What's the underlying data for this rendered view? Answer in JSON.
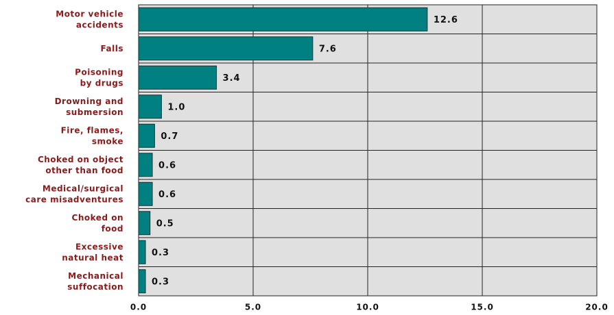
{
  "chart_data": {
    "type": "barh",
    "categories": [
      [
        "Motor vehicle",
        "accidents"
      ],
      [
        "Falls"
      ],
      [
        "Poisoning",
        "by drugs"
      ],
      [
        "Drowning and",
        "submersion"
      ],
      [
        "Fire, flames,",
        "smoke"
      ],
      [
        "Choked on object",
        "other than food"
      ],
      [
        "Medical/surgical",
        "care misadventures"
      ],
      [
        "Choked on",
        "food"
      ],
      [
        "Excessive",
        "natural heat"
      ],
      [
        "Mechanical",
        "suffocation"
      ]
    ],
    "values": [
      12.6,
      7.6,
      3.4,
      1.0,
      0.7,
      0.6,
      0.6,
      0.5,
      0.3,
      0.3
    ],
    "value_labels": [
      "12.6",
      "7.6",
      "3.4",
      "1.0",
      "0.7",
      "0.6",
      "0.6",
      "0.5",
      "0.3",
      "0.3"
    ],
    "color": "#008080",
    "xlim": [
      0,
      20
    ],
    "xticks": [
      {
        "value": 0,
        "label": "0.0"
      },
      {
        "value": 5,
        "label": "5.0"
      },
      {
        "value": 10,
        "label": "10.0"
      },
      {
        "value": 15,
        "label": "15.0"
      },
      {
        "value": 20,
        "label": "20.0"
      }
    ],
    "grid": true
  }
}
